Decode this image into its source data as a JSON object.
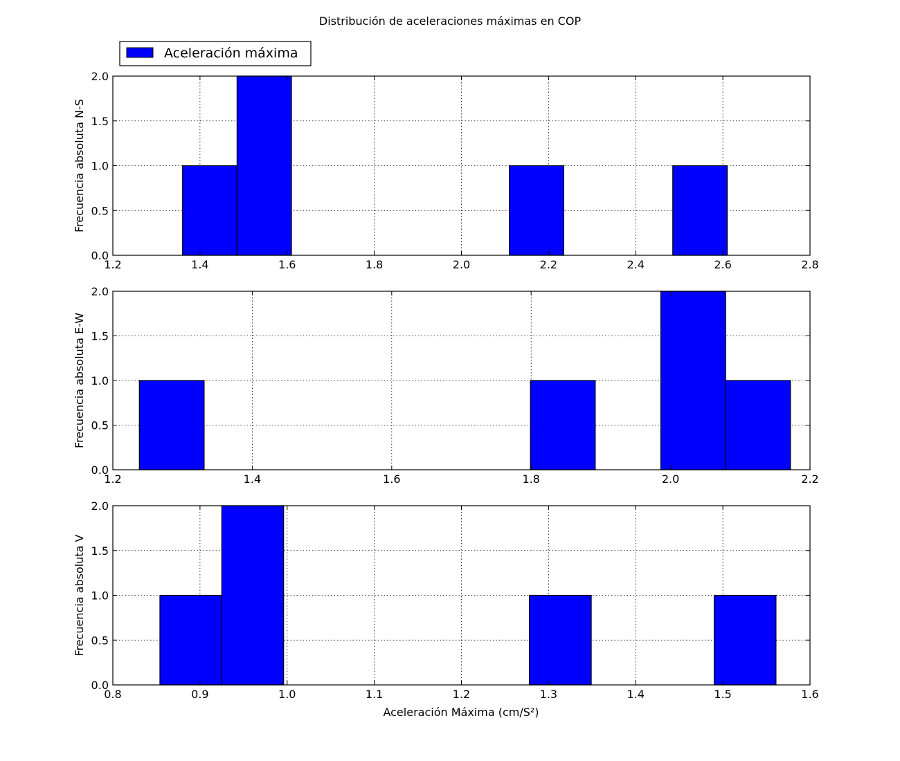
{
  "chart_data": {
    "type": "histogram",
    "title": "Distribución de aceleraciones máximas en COP",
    "xlabel": "Aceleración Máxima (cm/S²)",
    "legend": {
      "label": "Aceleración máxima",
      "placement": "upper-left",
      "color": "#0000ff"
    },
    "grid": true,
    "bar_color": "#0000ff",
    "subplots": [
      {
        "ylabel": "Frecuencia absoluta N-S",
        "xlim": [
          1.2,
          2.8
        ],
        "ylim": [
          0.0,
          2.0
        ],
        "xticks": [
          "1.2",
          "1.4",
          "1.6",
          "1.8",
          "2.0",
          "2.2",
          "2.4",
          "2.6",
          "2.8"
        ],
        "yticks": [
          "0.0",
          "0.5",
          "1.0",
          "1.5",
          "2.0"
        ],
        "bins": [
          {
            "start": 1.36,
            "end": 1.485,
            "count": 1
          },
          {
            "start": 1.485,
            "end": 1.61,
            "count": 2
          },
          {
            "start": 2.11,
            "end": 2.235,
            "count": 1
          },
          {
            "start": 2.485,
            "end": 2.61,
            "count": 1
          }
        ]
      },
      {
        "ylabel": "Frecuencia absoluta E-W",
        "xlim": [
          1.2,
          2.2
        ],
        "ylim": [
          0.0,
          2.0
        ],
        "xticks": [
          "1.2",
          "1.4",
          "1.6",
          "1.8",
          "2.0",
          "2.2"
        ],
        "yticks": [
          "0.0",
          "0.5",
          "1.0",
          "1.5",
          "2.0"
        ],
        "bins": [
          {
            "start": 1.238,
            "end": 1.331,
            "count": 1
          },
          {
            "start": 1.799,
            "end": 1.892,
            "count": 1
          },
          {
            "start": 1.986,
            "end": 2.079,
            "count": 2
          },
          {
            "start": 2.079,
            "end": 2.172,
            "count": 1
          }
        ]
      },
      {
        "ylabel": "Frecuencia absoluta V",
        "xlim": [
          0.8,
          1.6
        ],
        "ylim": [
          0.0,
          2.0
        ],
        "xticks": [
          "0.8",
          "0.9",
          "1.0",
          "1.1",
          "1.2",
          "1.3",
          "1.4",
          "1.5",
          "1.6"
        ],
        "yticks": [
          "0.0",
          "0.5",
          "1.0",
          "1.5",
          "2.0"
        ],
        "bins": [
          {
            "start": 0.854,
            "end": 0.925,
            "count": 1
          },
          {
            "start": 0.925,
            "end": 0.996,
            "count": 2
          },
          {
            "start": 1.278,
            "end": 1.349,
            "count": 1
          },
          {
            "start": 1.49,
            "end": 1.561,
            "count": 1
          }
        ]
      }
    ]
  }
}
